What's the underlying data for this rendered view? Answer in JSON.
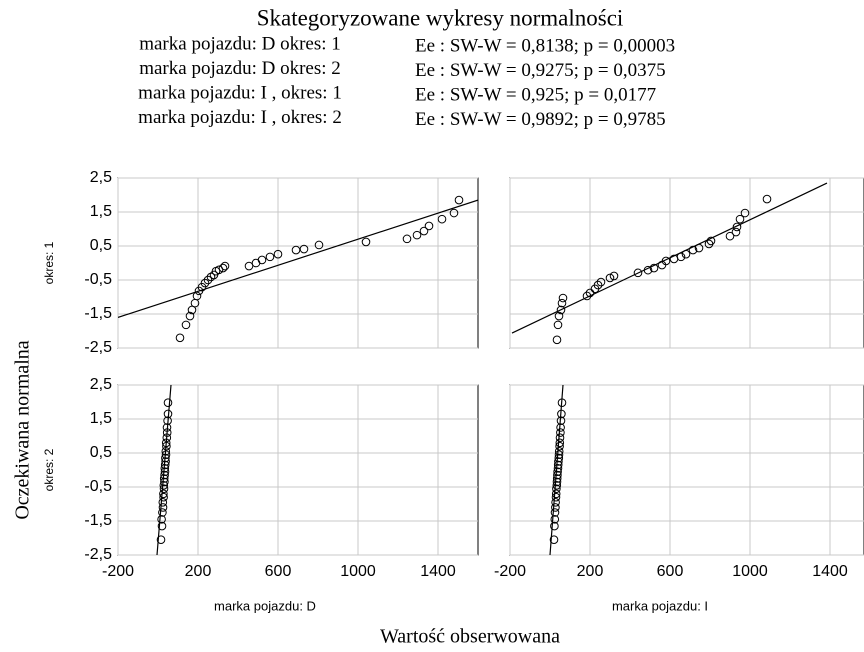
{
  "chart_data": {
    "type": "scatter",
    "title": "Skategoryzowane wykresy normalności",
    "legend": [
      {
        "label": "marka pojazdu: D okres: 1",
        "stat": "Ee : SW-W = 0,8138; p = 0,00003"
      },
      {
        "label": "marka pojazdu: D okres: 2",
        "stat": "Ee : SW-W = 0,9275; p = 0,0375"
      },
      {
        "label": "marka pojazdu: I , okres: 1",
        "stat": "Ee : SW-W = 0,925; p = 0,0177"
      },
      {
        "label": "marka pojazdu: I , okres: 2",
        "stat": "Ee : SW-W = 0,9892; p = 0,9785"
      }
    ],
    "ylabel": "Oczekiwana normalna",
    "xlabel": "Wartość obserwowana",
    "ylim": [
      -2.5,
      2.5
    ],
    "yticks": [
      {
        "value": 2.5,
        "label": "2,5"
      },
      {
        "value": 1.5,
        "label": "1,5"
      },
      {
        "value": 0.5,
        "label": "0,5"
      },
      {
        "value": -0.5,
        "label": "-0,5"
      },
      {
        "value": -1.5,
        "label": "-1,5"
      },
      {
        "value": -2.5,
        "label": "-2,5"
      }
    ],
    "grid": true,
    "color": "#000000",
    "rows": [
      {
        "label": "okres: 1"
      },
      {
        "label": "okres: 2"
      }
    ],
    "cols": [
      {
        "label": "marka pojazdu: D",
        "xlim": [
          -200,
          1600
        ],
        "xticks": [
          -200,
          200,
          600,
          1000,
          1400
        ]
      },
      {
        "label": "marka pojazdu: I",
        "xlim": [
          -200,
          1570
        ],
        "xticks": [
          -200,
          200,
          600,
          1000,
          1400
        ]
      }
    ],
    "panels": [
      {
        "x": [
          110,
          140,
          160,
          170,
          185,
          195,
          205,
          220,
          235,
          250,
          265,
          280,
          290,
          305,
          325,
          335,
          455,
          490,
          520,
          560,
          600,
          690,
          730,
          805,
          1040,
          1245,
          1295,
          1330,
          1355,
          1420,
          1480,
          1505
        ],
        "y": [
          -2.2,
          -1.82,
          -1.56,
          -1.38,
          -1.18,
          -0.97,
          -0.82,
          -0.71,
          -0.59,
          -0.5,
          -0.41,
          -0.35,
          -0.24,
          -0.2,
          -0.15,
          -0.09,
          -0.09,
          0.0,
          0.09,
          0.18,
          0.26,
          0.38,
          0.41,
          0.53,
          0.62,
          0.71,
          0.82,
          0.94,
          1.09,
          1.29,
          1.47,
          1.85
        ],
        "fit": {
          "x": [
            -200,
            1600
          ],
          "y": [
            -1.6,
            1.85
          ]
        }
      },
      {
        "x": [
          35,
          40,
          45,
          55,
          60,
          65,
          185,
          200,
          225,
          240,
          255,
          300,
          320,
          440,
          490,
          520,
          560,
          580,
          620,
          655,
          680,
          715,
          745,
          795,
          805,
          900,
          930,
          935,
          950,
          975,
          1085
        ],
        "y": [
          -2.26,
          -1.82,
          -1.56,
          -1.38,
          -1.18,
          -1.03,
          -0.97,
          -0.88,
          -0.76,
          -0.65,
          -0.56,
          -0.44,
          -0.38,
          -0.29,
          -0.21,
          -0.15,
          -0.06,
          0.06,
          0.12,
          0.18,
          0.26,
          0.38,
          0.44,
          0.56,
          0.65,
          0.79,
          0.91,
          1.06,
          1.29,
          1.47,
          1.88
        ],
        "fit": {
          "x": [
            -190,
            1385
          ],
          "y": [
            -2.06,
            2.35
          ]
        }
      },
      {
        "x": [
          15,
          20,
          18,
          22,
          25,
          24,
          28,
          27,
          30,
          29,
          32,
          31,
          33,
          35,
          34,
          36,
          38,
          37,
          40,
          39,
          42,
          41,
          44,
          46,
          45,
          48,
          50,
          50
        ],
        "y": [
          -2.05,
          -1.65,
          -1.45,
          -1.25,
          -1.1,
          -0.95,
          -0.8,
          -0.7,
          -0.55,
          -0.45,
          -0.35,
          -0.25,
          -0.15,
          -0.05,
          0.05,
          0.15,
          0.25,
          0.35,
          0.45,
          0.55,
          0.7,
          0.8,
          0.95,
          1.1,
          1.25,
          1.45,
          1.65,
          1.98
        ],
        "fit": {
          "x": [
            -5,
            65
          ],
          "y": [
            -2.5,
            2.5
          ]
        }
      },
      {
        "x": [
          20,
          22,
          24,
          25,
          27,
          28,
          30,
          31,
          32,
          34,
          35,
          36,
          37,
          38,
          40,
          41,
          42,
          44,
          45,
          46,
          48,
          49,
          50,
          52,
          53,
          55,
          57,
          60
        ],
        "y": [
          -2.05,
          -1.65,
          -1.45,
          -1.25,
          -1.1,
          -0.95,
          -0.8,
          -0.7,
          -0.55,
          -0.45,
          -0.35,
          -0.25,
          -0.15,
          -0.05,
          0.05,
          0.15,
          0.25,
          0.35,
          0.45,
          0.55,
          0.7,
          0.8,
          0.95,
          1.1,
          1.25,
          1.45,
          1.65,
          1.98
        ],
        "fit": {
          "x": [
            0,
            65
          ],
          "y": [
            -2.5,
            2.5
          ]
        }
      }
    ]
  }
}
